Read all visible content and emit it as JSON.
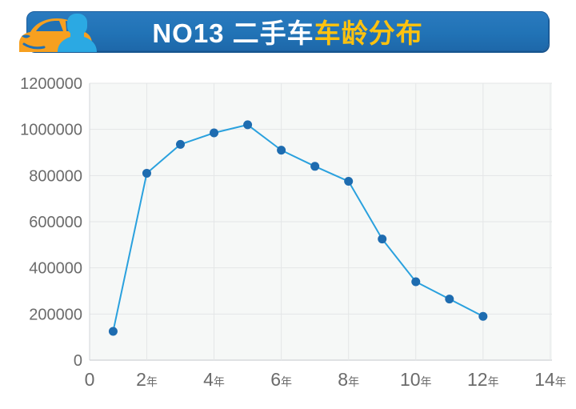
{
  "header": {
    "title_prefix": "NO13 二手车",
    "title_highlight": "车龄分布",
    "colors": {
      "banner": "#2173b6",
      "banner_edge": "#17558f",
      "title_text": "#ffffff",
      "title_highlight": "#ffc20e",
      "car": "#f7a01f",
      "person": "#2ba9e3"
    }
  },
  "chart_data": {
    "type": "line",
    "title": "NO13 二手车车龄分布",
    "xlabel": "",
    "ylabel": "",
    "x": [
      1,
      2,
      3,
      4,
      5,
      6,
      7,
      8,
      9,
      10,
      11,
      12
    ],
    "values": [
      125000,
      810000,
      935000,
      985000,
      1020000,
      910000,
      840000,
      775000,
      525000,
      340000,
      265000,
      190000
    ],
    "x_ticks": [
      {
        "value": 0,
        "num": "0",
        "suffix": ""
      },
      {
        "value": 2,
        "num": "2",
        "suffix": "年"
      },
      {
        "value": 4,
        "num": "4",
        "suffix": "年"
      },
      {
        "value": 6,
        "num": "6",
        "suffix": "年"
      },
      {
        "value": 8,
        "num": "8",
        "suffix": "年"
      },
      {
        "value": 10,
        "num": "10",
        "suffix": "年"
      },
      {
        "value": 12,
        "num": "12",
        "suffix": "年"
      },
      {
        "value": 14,
        "num": "14",
        "suffix": "年"
      }
    ],
    "y_ticks": [
      0,
      200000,
      400000,
      600000,
      800000,
      1000000,
      1200000
    ],
    "xlim": [
      0.3,
      14.05
    ],
    "ylim": [
      0,
      1200000
    ],
    "grid": true,
    "legend": false,
    "style": {
      "line": "#2aa1de",
      "marker": "#1e6cb0",
      "marker_radius": 5.5,
      "grid": "#e4e6e7",
      "axis": "#c4c8cc",
      "axis_left": "#d2d5d8",
      "plot_bg": "#f6f8f7",
      "tick_label": "#6b6b6b"
    }
  }
}
